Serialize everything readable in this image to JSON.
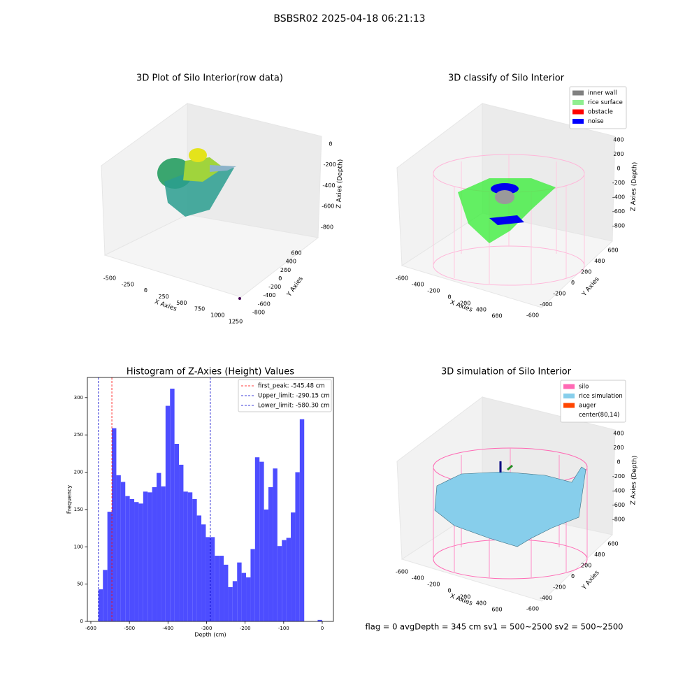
{
  "title": "BSBSR02 2025-04-18 06:21:13",
  "footer": "flag = 0     avgDepth = 345 cm  sv1 = 500~2500  sv2 = 500~2500",
  "chart_data": [
    {
      "type": "scatter3d",
      "title": "3D Plot of Silo Interior(row data)",
      "xlabel": "X Axies",
      "ylabel": "Y Axies",
      "zlabel": "Z Axies (Depth)",
      "xlim": [
        -600,
        1350
      ],
      "xticks": [
        -500,
        -250,
        0,
        250,
        500,
        750,
        1000,
        1250
      ],
      "ylim": [
        -950,
        750
      ],
      "yticks": [
        -800,
        -600,
        -400,
        -200,
        0,
        200,
        400,
        600
      ],
      "zlim": [
        -950,
        100
      ],
      "zticks": [
        -800,
        -600,
        -400,
        -200,
        0
      ]
    },
    {
      "type": "scatter3d",
      "title": "3D classify of Silo Interior",
      "xlabel": "X Axies",
      "ylabel": "Y Axies",
      "zlabel": "Z Axies (Depth)",
      "xlim": [
        -750,
        750
      ],
      "xticks": [
        -600,
        -400,
        -200,
        0,
        200,
        400,
        600
      ],
      "ylim": [
        -750,
        750
      ],
      "yticks": [
        -600,
        -400,
        -200,
        0,
        200,
        400,
        600
      ],
      "zlim": [
        -950,
        500
      ],
      "zticks": [
        -800,
        -600,
        -400,
        -200,
        0,
        200,
        400
      ],
      "legend": [
        {
          "name": "inner wall",
          "color": "#808080"
        },
        {
          "name": "rice surface",
          "color": "#90ee90"
        },
        {
          "name": "obstacle",
          "color": "#ff0000"
        },
        {
          "name": "noise",
          "color": "#0000ff"
        }
      ]
    },
    {
      "type": "histogram",
      "title": "Histogram of Z-Axies (Height) Values",
      "xlabel": "Depth (cm)",
      "ylabel": "Frequency",
      "color": "#4d4dff",
      "bins": [
        -580.3,
        -568.7,
        -557.1,
        -545.5,
        -533.9,
        -522.3,
        -510.7,
        -499.1,
        -487.5,
        -475.9,
        -464.3,
        -452.7,
        -441.1,
        -429.5,
        -417.9,
        -406.3,
        -394.7,
        -383.1,
        -371.5,
        -359.9,
        -348.3,
        -336.7,
        -325.1,
        -313.5,
        -301.9,
        -290.3,
        -278.7,
        -267.1,
        -255.5,
        -243.9,
        -232.3,
        -220.7,
        -209.1,
        -197.5,
        -185.9,
        -174.3,
        -162.7,
        -151.1,
        -139.5,
        -127.9,
        -116.3,
        -104.7,
        -93.1,
        -81.5,
        -69.9,
        -58.3,
        -46.7,
        -35.1,
        -23.5,
        -11.9,
        -0.3
      ],
      "values": [
        43,
        69,
        147,
        259,
        196,
        187,
        168,
        164,
        160,
        158,
        174,
        173,
        180,
        199,
        181,
        289,
        312,
        238,
        210,
        174,
        173,
        164,
        142,
        130,
        113,
        113,
        88,
        88,
        76,
        46,
        54,
        79,
        65,
        59,
        97,
        220,
        214,
        150,
        180,
        205,
        101,
        109,
        112,
        146,
        200,
        271,
        0,
        0,
        0,
        2
      ],
      "xlim": [
        -609,
        29
      ],
      "xticks": [
        -600,
        -500,
        -400,
        -300,
        -200,
        -100,
        0
      ],
      "ylim": [
        0,
        327
      ],
      "yticks": [
        0,
        50,
        100,
        150,
        200,
        250,
        300
      ],
      "vlines": [
        {
          "label": "first_peak: -545.48 cm",
          "value": -545.48,
          "color": "#ff0000"
        },
        {
          "label": "Upper_limit: -290.15 cm",
          "value": -290.15,
          "color": "#0000cc"
        },
        {
          "label": "Lower_limit: -580.30 cm",
          "value": -580.3,
          "color": "#0000cc"
        }
      ]
    },
    {
      "type": "surface3d",
      "title": "3D simulation of Silo Interior",
      "xlabel": "X Axies",
      "ylabel": "Y Axies",
      "zlabel": "Z Axies (Depth)",
      "xlim": [
        -750,
        750
      ],
      "xticks": [
        -600,
        -400,
        -200,
        0,
        200,
        400,
        600
      ],
      "ylim": [
        -750,
        750
      ],
      "yticks": [
        -600,
        -400,
        -200,
        0,
        200,
        400,
        600
      ],
      "zlim": [
        -950,
        500
      ],
      "zticks": [
        -800,
        -600,
        -400,
        -200,
        0,
        200,
        400
      ],
      "legend": [
        {
          "name": "silo",
          "color": "#ff69b4"
        },
        {
          "name": "rice simulation",
          "color": "#87ceeb"
        },
        {
          "name": "auger",
          "color": "#ff4500"
        },
        {
          "name": "center(80,14)"
        }
      ]
    }
  ]
}
